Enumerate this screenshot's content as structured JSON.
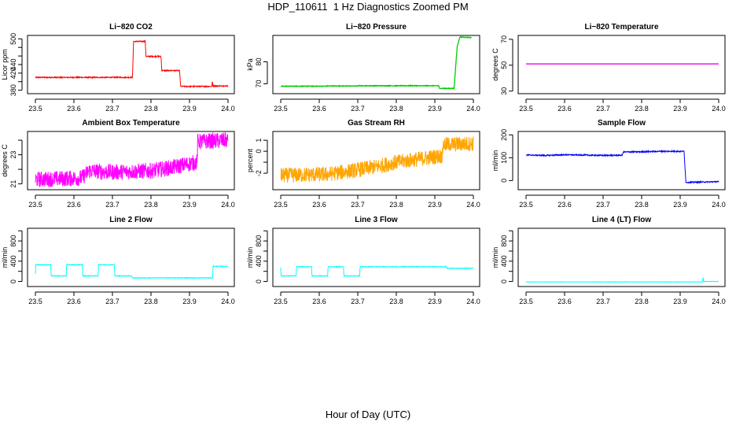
{
  "title": "HDP_110611  1 Hz Diagnostics Zoomed PM",
  "xlabel": "Hour of Day (UTC)",
  "chart_data": [
    {
      "type": "line",
      "title": "Li−820 CO2",
      "ylabel": "Licor ppm",
      "color": "#ff0000",
      "xlim": [
        23.5,
        24.0
      ],
      "ylim": [
        372,
        508
      ],
      "xticks": [
        23.5,
        23.6,
        23.7,
        23.8,
        23.9,
        24.0
      ],
      "xtick_labels": [
        "23.5",
        "23.6",
        "23.7",
        "23.8",
        "23.9",
        "24.0"
      ],
      "yticks": [
        380,
        400,
        420,
        440,
        460,
        480,
        500
      ],
      "ytick_labels": [
        "380",
        "",
        "420",
        "440",
        "",
        "",
        "500"
      ],
      "noise": 1.2,
      "segments": [
        [
          23.5,
          410
        ],
        [
          23.752,
          410
        ],
        [
          23.755,
          494
        ],
        [
          23.785,
          494
        ],
        [
          23.787,
          459
        ],
        [
          23.826,
          459
        ],
        [
          23.828,
          426
        ],
        [
          23.874,
          426
        ],
        [
          23.877,
          389
        ],
        [
          23.958,
          389
        ],
        [
          23.959,
          401
        ],
        [
          23.961,
          390
        ],
        [
          24.0,
          390
        ]
      ]
    },
    {
      "type": "line",
      "title": "Li−820 Pressure",
      "ylabel": "kPa",
      "color": "#00cc00",
      "xlim": [
        23.5,
        24.0
      ],
      "ylim": [
        65.5,
        92
      ],
      "xticks": [
        23.5,
        23.6,
        23.7,
        23.8,
        23.9,
        24.0
      ],
      "xtick_labels": [
        "23.5",
        "23.6",
        "23.7",
        "23.8",
        "23.9",
        "24.0"
      ],
      "yticks": [
        70,
        80
      ],
      "ytick_labels": [
        "70",
        "80"
      ],
      "noise": 0.12,
      "segments": [
        [
          23.5,
          68.9
        ],
        [
          23.62,
          68.9
        ],
        [
          23.621,
          69.0
        ],
        [
          23.7,
          69.0
        ],
        [
          23.702,
          69.1
        ],
        [
          23.91,
          69.1
        ],
        [
          23.912,
          67.9
        ],
        [
          23.95,
          67.9
        ],
        [
          23.958,
          87
        ],
        [
          23.965,
          91.3
        ],
        [
          23.995,
          91.0
        ]
      ]
    },
    {
      "type": "line",
      "title": "Li−820 Temperature",
      "ylabel": "degrees C",
      "color": "#ee00ee",
      "xlim": [
        23.5,
        24.0
      ],
      "ylim": [
        28,
        73
      ],
      "xticks": [
        23.5,
        23.6,
        23.7,
        23.8,
        23.9,
        24.0
      ],
      "xtick_labels": [
        "23.5",
        "23.6",
        "23.7",
        "23.8",
        "23.9",
        "24.0"
      ],
      "yticks": [
        30,
        50,
        70
      ],
      "ytick_labels": [
        "30",
        "50",
        "70"
      ],
      "noise": 0.0,
      "segments": [
        [
          23.5,
          51
        ],
        [
          24.0,
          51
        ]
      ]
    },
    {
      "type": "line",
      "title": "Ambient Box Temperature",
      "ylabel": "degrees C",
      "color": "#ff00ff",
      "xlim": [
        23.5,
        24.0
      ],
      "ylim": [
        20.6,
        24.6
      ],
      "xticks": [
        23.5,
        23.6,
        23.7,
        23.8,
        23.9,
        24.0
      ],
      "xtick_labels": [
        "23.5",
        "23.6",
        "23.7",
        "23.8",
        "23.9",
        "24.0"
      ],
      "yticks": [
        21,
        22,
        23,
        24
      ],
      "ytick_labels": [
        "21",
        "",
        "23",
        ""
      ],
      "noise": 0.55,
      "segments": [
        [
          23.5,
          21.3
        ],
        [
          23.62,
          21.4
        ],
        [
          23.64,
          21.9
        ],
        [
          23.7,
          21.8
        ],
        [
          23.8,
          21.9
        ],
        [
          23.85,
          22.1
        ],
        [
          23.92,
          22.5
        ],
        [
          23.921,
          23.9
        ],
        [
          24.0,
          24.0
        ]
      ]
    },
    {
      "type": "line",
      "title": "Gas Stream RH",
      "ylabel": "percent",
      "color": "#ffa500",
      "xlim": [
        23.5,
        24.0
      ],
      "ylim": [
        -3.5,
        1.8
      ],
      "xticks": [
        23.5,
        23.6,
        23.7,
        23.8,
        23.9,
        24.0
      ],
      "xtick_labels": [
        "23.5",
        "23.6",
        "23.7",
        "23.8",
        "23.9",
        "24.0"
      ],
      "yticks": [
        -2,
        -1,
        0,
        1
      ],
      "ytick_labels": [
        "-2",
        "",
        "0",
        "1"
      ],
      "noise": 0.7,
      "segments": [
        [
          23.5,
          -2.2
        ],
        [
          23.62,
          -2.1
        ],
        [
          23.68,
          -1.8
        ],
        [
          23.75,
          -1.4
        ],
        [
          23.8,
          -1.0
        ],
        [
          23.9,
          -0.5
        ],
        [
          23.92,
          -0.4
        ],
        [
          23.921,
          0.6
        ],
        [
          24.0,
          0.7
        ]
      ]
    },
    {
      "type": "line",
      "title": "Sample Flow",
      "ylabel": "ml/min",
      "color": "#0000ff",
      "xlim": [
        23.5,
        24.0
      ],
      "ylim": [
        -40,
        215
      ],
      "xticks": [
        23.5,
        23.6,
        23.7,
        23.8,
        23.9,
        24.0
      ],
      "xtick_labels": [
        "23.5",
        "23.6",
        "23.7",
        "23.8",
        "23.9",
        "24.0"
      ],
      "yticks": [
        0,
        100,
        200
      ],
      "ytick_labels": [
        "0",
        "100",
        "200"
      ],
      "noise": 2.5,
      "segments": [
        [
          23.5,
          112
        ],
        [
          23.55,
          110
        ],
        [
          23.6,
          113
        ],
        [
          23.7,
          110
        ],
        [
          23.75,
          111
        ],
        [
          23.752,
          125
        ],
        [
          23.8,
          126
        ],
        [
          23.85,
          128
        ],
        [
          23.91,
          128
        ],
        [
          23.915,
          -8
        ],
        [
          24.0,
          -5
        ]
      ]
    },
    {
      "type": "line",
      "title": "Line 2 Flow",
      "ylabel": "ml/min",
      "color": "#00ffff",
      "xlim": [
        23.5,
        24.0
      ],
      "ylim": [
        -100,
        1050
      ],
      "xticks": [
        23.5,
        23.6,
        23.7,
        23.8,
        23.9,
        24.0
      ],
      "xtick_labels": [
        "23.5",
        "23.6",
        "23.7",
        "23.8",
        "23.9",
        "24.0"
      ],
      "yticks": [
        0,
        200,
        400,
        600,
        800,
        1000
      ],
      "ytick_labels": [
        "0",
        "",
        "400",
        "",
        "800",
        ""
      ],
      "noise": 6,
      "segments": [
        [
          23.5,
          150
        ],
        [
          23.501,
          330
        ],
        [
          23.54,
          330
        ],
        [
          23.541,
          110
        ],
        [
          23.58,
          110
        ],
        [
          23.581,
          330
        ],
        [
          23.622,
          330
        ],
        [
          23.623,
          110
        ],
        [
          23.663,
          110
        ],
        [
          23.664,
          330
        ],
        [
          23.705,
          330
        ],
        [
          23.706,
          110
        ],
        [
          23.75,
          110
        ],
        [
          23.751,
          70
        ],
        [
          23.96,
          70
        ],
        [
          23.961,
          300
        ],
        [
          24.0,
          300
        ]
      ]
    },
    {
      "type": "line",
      "title": "Line 3 Flow",
      "ylabel": "ml/min",
      "color": "#00ffff",
      "xlim": [
        23.5,
        24.0
      ],
      "ylim": [
        -100,
        1050
      ],
      "xticks": [
        23.5,
        23.6,
        23.7,
        23.8,
        23.9,
        24.0
      ],
      "xtick_labels": [
        "23.5",
        "23.6",
        "23.7",
        "23.8",
        "23.9",
        "24.0"
      ],
      "yticks": [
        0,
        200,
        400,
        600,
        800,
        1000
      ],
      "ytick_labels": [
        "0",
        "",
        "400",
        "",
        "800",
        ""
      ],
      "noise": 6,
      "segments": [
        [
          23.5,
          280
        ],
        [
          23.501,
          110
        ],
        [
          23.54,
          110
        ],
        [
          23.541,
          290
        ],
        [
          23.58,
          290
        ],
        [
          23.581,
          110
        ],
        [
          23.622,
          110
        ],
        [
          23.623,
          290
        ],
        [
          23.663,
          290
        ],
        [
          23.664,
          110
        ],
        [
          23.705,
          110
        ],
        [
          23.706,
          290
        ],
        [
          23.93,
          290
        ],
        [
          23.931,
          260
        ],
        [
          24.0,
          260
        ]
      ]
    },
    {
      "type": "line",
      "title": "Line 4 (LT) Flow",
      "ylabel": "ml/min",
      "color": "#00ffff",
      "xlim": [
        23.5,
        24.0
      ],
      "ylim": [
        -100,
        1050
      ],
      "xticks": [
        23.5,
        23.6,
        23.7,
        23.8,
        23.9,
        24.0
      ],
      "xtick_labels": [
        "23.5",
        "23.6",
        "23.7",
        "23.8",
        "23.9",
        "24.0"
      ],
      "yticks": [
        0,
        200,
        400,
        600,
        800,
        1000
      ],
      "ytick_labels": [
        "0",
        "",
        "400",
        "",
        "800",
        ""
      ],
      "noise": 3,
      "segments": [
        [
          23.5,
          -10
        ],
        [
          23.958,
          -10
        ],
        [
          23.959,
          80
        ],
        [
          23.961,
          0
        ],
        [
          24.0,
          0
        ]
      ]
    }
  ]
}
